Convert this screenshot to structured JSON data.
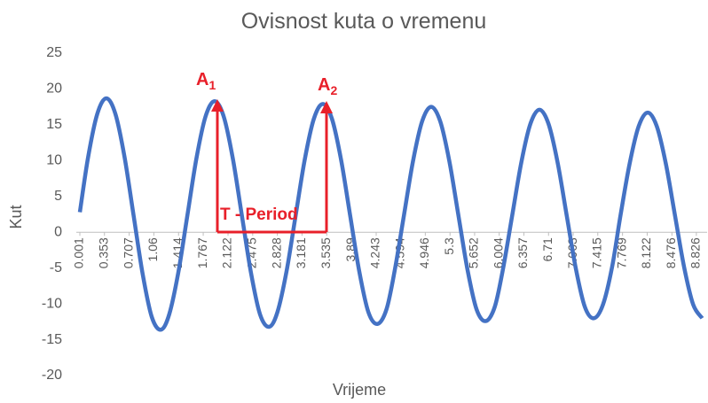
{
  "chart_data": {
    "type": "line",
    "title": "Ovisnost kuta o vremenu",
    "x_label": "Vrijeme",
    "y_label": "Kut",
    "x": [
      0.001,
      0.12,
      0.25,
      0.38,
      0.51,
      0.64,
      0.77,
      0.9,
      1.03,
      1.16,
      1.28,
      1.41,
      1.54,
      1.67,
      1.8,
      1.93,
      2.06,
      2.19,
      2.32,
      2.45,
      2.58,
      2.71,
      2.83,
      2.96,
      3.09,
      3.22,
      3.35,
      3.48,
      3.61,
      3.74,
      3.87,
      4.0,
      4.13,
      4.26,
      4.39,
      4.51,
      4.64,
      4.77,
      4.9,
      5.03,
      5.16,
      5.29,
      5.42,
      5.55,
      5.68,
      5.81,
      5.94,
      6.06,
      6.19,
      6.32,
      6.45,
      6.58,
      6.71,
      6.84,
      6.97,
      7.1,
      7.23,
      7.36,
      7.49,
      7.62,
      7.74,
      7.87,
      8.0,
      8.13,
      8.26,
      8.39,
      8.52,
      8.65,
      8.78,
      8.91
    ],
    "series": [
      {
        "name": "Kut",
        "color": "#4472c4",
        "values": [
          2.8,
          10.53,
          16.51,
          18.7,
          16.51,
          10.53,
          2.35,
          -5.83,
          -11.81,
          -13.6,
          -11.46,
          -5.63,
          2.35,
          10.33,
          16.16,
          18.3,
          16.16,
          10.33,
          2.35,
          -5.63,
          -11.46,
          -13.2,
          -11.12,
          -5.43,
          2.35,
          10.13,
          15.82,
          17.9,
          15.82,
          10.13,
          2.35,
          -5.43,
          -11.12,
          -12.8,
          -10.77,
          -5.23,
          2.35,
          9.93,
          15.47,
          17.5,
          15.47,
          9.93,
          2.35,
          -5.23,
          -10.77,
          -12.4,
          -10.42,
          -5.03,
          2.35,
          9.73,
          15.12,
          17.1,
          15.12,
          9.73,
          2.35,
          -5.03,
          -10.42,
          -12.0,
          -10.08,
          -4.83,
          2.35,
          9.53,
          14.78,
          16.7,
          14.78,
          9.53,
          2.35,
          -4.83,
          -10.08,
          -12.0
        ]
      }
    ],
    "xlim": [
      -0.05,
      8.98
    ],
    "xticks": [
      0.001,
      0.353,
      0.707,
      1.06,
      1.414,
      1.767,
      2.122,
      2.475,
      2.828,
      3.181,
      3.535,
      3.89,
      4.243,
      4.594,
      4.946,
      5.3,
      5.652,
      6.004,
      6.357,
      6.71,
      7.063,
      7.415,
      7.769,
      8.122,
      8.476,
      8.826
    ],
    "ylim": [
      -20,
      25
    ],
    "yticks": [
      -20,
      -15,
      -10,
      -5,
      0,
      5,
      10,
      15,
      20,
      25
    ],
    "grid": false,
    "annotations": [
      {
        "text": "A",
        "subscript": "1"
      },
      {
        "text": "A",
        "subscript": "2"
      },
      {
        "text": "T - Period"
      }
    ]
  }
}
